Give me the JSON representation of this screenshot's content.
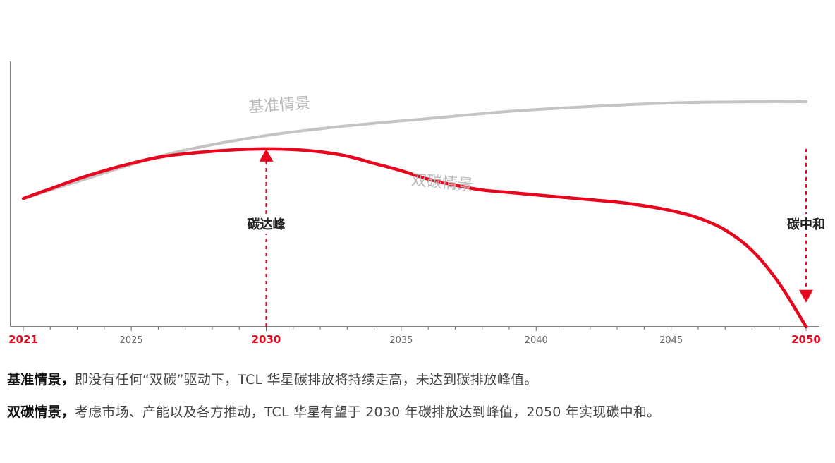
{
  "chart_data": {
    "type": "line",
    "title": "",
    "xlabel": "",
    "ylabel": "",
    "xlim": [
      2021,
      2050
    ],
    "ylim": [
      0,
      100
    ],
    "grid": false,
    "x_tick_labels": [
      {
        "year": 2021,
        "label": "2021",
        "highlight": true
      },
      {
        "year": 2025,
        "label": "2025",
        "highlight": false
      },
      {
        "year": 2030,
        "label": "2030",
        "highlight": true
      },
      {
        "year": 2035,
        "label": "2035",
        "highlight": false
      },
      {
        "year": 2040,
        "label": "2040",
        "highlight": false
      },
      {
        "year": 2045,
        "label": "2045",
        "highlight": false
      },
      {
        "year": 2050,
        "label": "2050",
        "highlight": true
      }
    ],
    "series": [
      {
        "name": "基准情景",
        "color": "#c4c4c4",
        "x": [
          2021,
          2023,
          2025,
          2027,
          2030,
          2033,
          2036,
          2039,
          2042,
          2045,
          2048,
          2050
        ],
        "values": [
          53,
          60,
          67,
          73,
          79,
          83,
          86,
          89,
          91,
          92.5,
          93,
          93
        ]
      },
      {
        "name": "双碳情景",
        "color": "#e8061f",
        "x": [
          2021,
          2022,
          2023,
          2024,
          2025,
          2026,
          2027,
          2028,
          2029,
          2030,
          2031,
          2032,
          2033,
          2034,
          2035,
          2036,
          2037,
          2038,
          2039,
          2040,
          2041,
          2042,
          2043,
          2044,
          2045,
          2046,
          2047,
          2048,
          2049,
          2050
        ],
        "values": [
          53,
          57,
          61,
          64.5,
          67.5,
          70,
          71.5,
          72.5,
          73.2,
          73.5,
          73.2,
          72.3,
          70.5,
          67.5,
          64.5,
          61,
          58.5,
          56.5,
          55.5,
          54.5,
          53.5,
          52.5,
          51.5,
          50,
          48,
          45,
          40,
          31.5,
          18,
          0
        ]
      }
    ],
    "series_labels": [
      {
        "text": "基准情景",
        "x": 2030.5,
        "y": 89.5
      },
      {
        "text": "双碳情景",
        "x": 2036.5,
        "y": 57.5
      }
    ],
    "annotations": [
      {
        "text": "碳达峰",
        "x": 2030,
        "y": 42,
        "arrow": "up",
        "arrow_from": 0,
        "arrow_to": 73.5
      },
      {
        "text": "碳中和",
        "x": 2050,
        "y": 42,
        "arrow": "down",
        "arrow_from": 73.5,
        "arrow_to": 10
      }
    ],
    "highlight_color": "#e8061f",
    "tick_color": "#666666"
  },
  "legend": {
    "line1_bold": "基准情景，",
    "line1_text": "即没有任何“双碳”驱动下，TCL 华星碳排放将持续走高，未达到碳排放峰值。",
    "line2_bold": "双碳情景，",
    "line2_text": "考虑市场、产能以及各方推动，TCL 华星有望于 2030 年碳排放达到峰值，2050 年实现碳中和。"
  }
}
